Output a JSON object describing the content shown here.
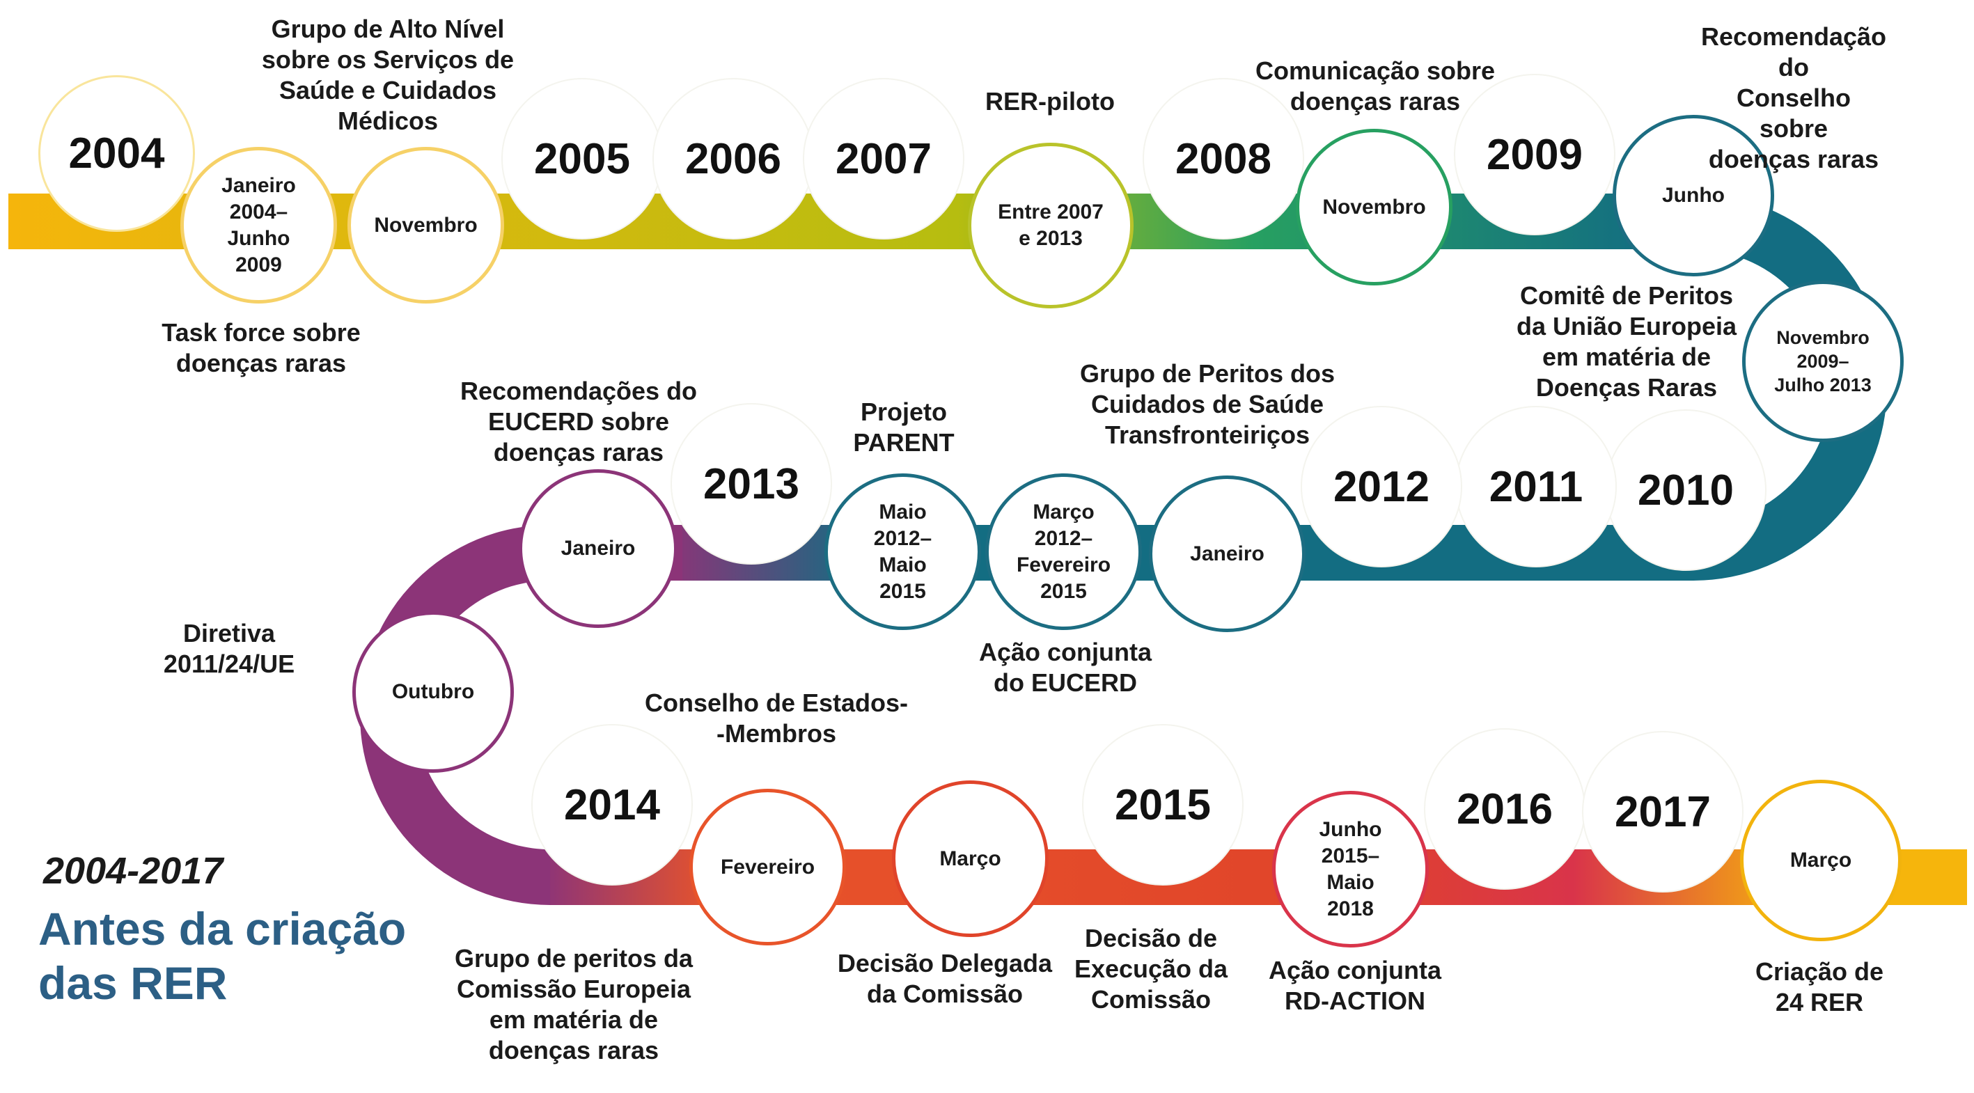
{
  "period": "2004-2017",
  "subtitle": "Antes da criação\ndas RER",
  "years": [
    "2004",
    "2005",
    "2006",
    "2007",
    "2008",
    "2009",
    "2010",
    "2011",
    "2012",
    "2013",
    "2014",
    "2015",
    "2016",
    "2017"
  ],
  "events": [
    {
      "date": "Janeiro\n2004–\nJunho\n2009",
      "label": "Task force sobre\ndoenças raras",
      "color": "#f6d167"
    },
    {
      "date": "Novembro",
      "label": "Grupo de Alto Nível\nsobre os Serviços de\nSaúde e Cuidados\nMédicos",
      "color": "#f6d167"
    },
    {
      "date": "Entre 2007\ne 2013",
      "label": "RER-piloto",
      "color": "#b9c32a"
    },
    {
      "date": "Novembro",
      "label": "Comunicação sobre\ndoenças raras",
      "color": "#27a061"
    },
    {
      "date": "Junho",
      "label": "Recomendação do\nConselho sobre\ndoenças raras",
      "color": "#1c6d82"
    },
    {
      "date": "Novembro\n2009–\nJulho 2013",
      "label": "Comitê de Peritos\nda União Europeia\nem matéria de\nDoenças Raras",
      "color": "#1c6d82"
    },
    {
      "date": "Janeiro",
      "label": "Grupo de Peritos dos\nCuidados de Saúde\nTransfronteiriços",
      "color": "#1c6d82"
    },
    {
      "date": "Março\n2012–\nFevereiro\n2015",
      "label": "Ação conjunta\ndo EUCERD",
      "color": "#1c6d82"
    },
    {
      "date": "Maio\n2012–\nMaio\n2015",
      "label": "Projeto\nPARENT",
      "color": "#1c6d82"
    },
    {
      "date": "Janeiro",
      "label": "Recomendações do\nEUCERD sobre\ndoenças raras",
      "color": "#8c3478"
    },
    {
      "date": "Outubro",
      "label": "Diretiva\n2011/24/UE",
      "color": "#8c3478"
    },
    {
      "date": "Fevereiro",
      "label": "Grupo de peritos da\nComissão Europeia\nem matéria de\ndoenças raras",
      "color": "#e8542a"
    },
    {
      "date": "Março",
      "label": "Decisão Delegada\nda Comissão",
      "color": "#e0442a"
    },
    {
      "date": "",
      "label": "Conselho de Estados-\n-Membros",
      "color": "#e0442a"
    },
    {
      "date": "",
      "label": "Decisão de\nExecução da\nComissão",
      "color": "#d9344a"
    },
    {
      "date": "Junho\n2015–\nMaio\n2018",
      "label": "Ação conjunta\nRD-ACTION",
      "color": "#d9344a"
    },
    {
      "date": "Março",
      "label": "Criação de 24 RER",
      "color": "#f2b30d"
    }
  ],
  "palette": {
    "yellow": "#f6b50c",
    "olive": "#b6bd10",
    "green": "#27a061",
    "teal": "#136d82",
    "purple": "#8c3478",
    "orange": "#e8542a",
    "red": "#d9344a",
    "title_blue": "#2c5f85"
  }
}
